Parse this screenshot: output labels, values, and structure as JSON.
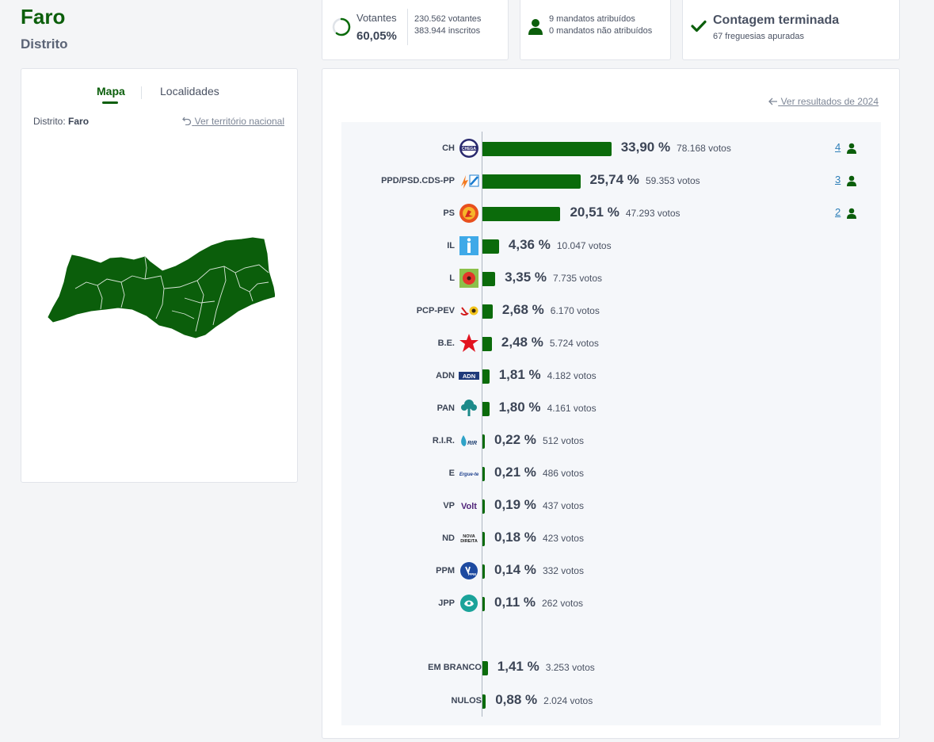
{
  "header": {
    "title": "Faro",
    "subtitle": "Distrito"
  },
  "stats": {
    "turnout": {
      "label": "Votantes",
      "pct": "60,05%",
      "voters": "230.562 votantes",
      "registered": "383.944 inscritos",
      "fraction": 0.6005
    },
    "mandates": {
      "assigned": "9 mandatos atribuídos",
      "unassigned": "0 mandatos não atribuídos"
    },
    "count": {
      "title": "Contagem terminada",
      "parishes": "67 freguesias apuradas"
    }
  },
  "map_panel": {
    "tabs": [
      "Mapa",
      "Localidades"
    ],
    "district_label": "Distrito:",
    "district_value": "Faro",
    "national_link": "Ver território nacional"
  },
  "results": {
    "prev_link": "Ver resultados de 2024",
    "parties": [
      {
        "name": "CH",
        "pct": "33,90 %",
        "votes": "78.168 votos",
        "value": 33.9,
        "seats": "4"
      },
      {
        "name": "PPD/PSD.CDS-PP",
        "pct": "25,74 %",
        "votes": "59.353 votos",
        "value": 25.74,
        "seats": "3"
      },
      {
        "name": "PS",
        "pct": "20,51 %",
        "votes": "47.293 votos",
        "value": 20.51,
        "seats": "2"
      },
      {
        "name": "IL",
        "pct": "4,36 %",
        "votes": "10.047 votos",
        "value": 4.36,
        "seats": ""
      },
      {
        "name": "L",
        "pct": "3,35 %",
        "votes": "7.735 votos",
        "value": 3.35,
        "seats": ""
      },
      {
        "name": "PCP-PEV",
        "pct": "2,68 %",
        "votes": "6.170 votos",
        "value": 2.68,
        "seats": ""
      },
      {
        "name": "B.E.",
        "pct": "2,48 %",
        "votes": "5.724 votos",
        "value": 2.48,
        "seats": ""
      },
      {
        "name": "ADN",
        "pct": "1,81 %",
        "votes": "4.182 votos",
        "value": 1.81,
        "seats": ""
      },
      {
        "name": "PAN",
        "pct": "1,80 %",
        "votes": "4.161 votos",
        "value": 1.8,
        "seats": ""
      },
      {
        "name": "R.I.R.",
        "pct": "0,22 %",
        "votes": "512 votos",
        "value": 0.22,
        "seats": ""
      },
      {
        "name": "E",
        "pct": "0,21 %",
        "votes": "486 votos",
        "value": 0.21,
        "seats": ""
      },
      {
        "name": "VP",
        "pct": "0,19 %",
        "votes": "437 votos",
        "value": 0.19,
        "seats": ""
      },
      {
        "name": "ND",
        "pct": "0,18 %",
        "votes": "423 votos",
        "value": 0.18,
        "seats": ""
      },
      {
        "name": "PPM",
        "pct": "0,14 %",
        "votes": "332 votos",
        "value": 0.14,
        "seats": ""
      },
      {
        "name": "JPP",
        "pct": "0,11 %",
        "votes": "262 votos",
        "value": 0.11,
        "seats": ""
      }
    ],
    "others": [
      {
        "name": "EM BRANCO",
        "pct": "1,41 %",
        "votes": "3.253 votos",
        "value": 1.41
      },
      {
        "name": "NULOS",
        "pct": "0,88 %",
        "votes": "2.024 votos",
        "value": 0.88
      }
    ],
    "logo_texts": {
      "CH": "CHEGA",
      "ADN": "ADN",
      "RIR": "RIR",
      "E": "Ergue-te",
      "VP": "Volt",
      "ND": "NOVA DIREITA",
      "PPM": "PPM"
    }
  },
  "colors": {
    "accent": "#0b5e0b",
    "bar": "#0b6b0b",
    "link": "#2e7fb8"
  }
}
